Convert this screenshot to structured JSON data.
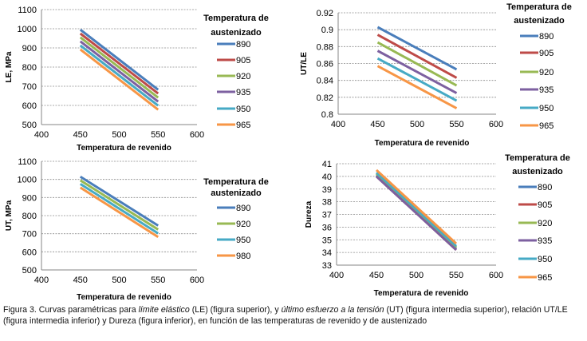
{
  "colors": {
    "890": "#4a7ebb",
    "905": "#be4b48",
    "920": "#98b954",
    "935": "#7d60a0",
    "950": "#46aac5",
    "965": "#f79646",
    "980": "#f79646"
  },
  "chart_data": [
    {
      "type": "line",
      "title": "",
      "xlabel": "Temperatura de revenido",
      "ylabel": "LE, MPa",
      "xlim": [
        400,
        600
      ],
      "xticks": [
        400,
        450,
        500,
        550,
        600
      ],
      "ylim": [
        500,
        1100
      ],
      "yticks": [
        500,
        600,
        700,
        800,
        900,
        1000,
        1100
      ],
      "ytick_labels": [
        "500",
        "600",
        "700",
        "800",
        "900",
        "1000",
        "1100"
      ],
      "grid": true,
      "legend_title": "Temperatura de austenizado",
      "legend_title_lines": [
        "Temperatura de",
        "austenizado"
      ],
      "legend": "right",
      "x": [
        450,
        550
      ],
      "series": [
        {
          "name": "890",
          "values": [
            995,
            682
          ]
        },
        {
          "name": "905",
          "values": [
            975,
            662
          ]
        },
        {
          "name": "920",
          "values": [
            955,
            641
          ]
        },
        {
          "name": "935",
          "values": [
            934,
            620
          ]
        },
        {
          "name": "950",
          "values": [
            913,
            599
          ]
        },
        {
          "name": "965",
          "values": [
            892,
            578
          ]
        }
      ]
    },
    {
      "type": "line",
      "title": "",
      "xlabel": "Temperatura de revenido",
      "ylabel": "UT/LE",
      "xlim": [
        400,
        600
      ],
      "xticks": [
        400,
        450,
        500,
        550,
        600
      ],
      "ylim": [
        0.8,
        0.92
      ],
      "yticks": [
        0.8,
        0.82,
        0.84,
        0.86,
        0.88,
        0.9,
        0.92
      ],
      "ytick_labels": [
        "0.8",
        "0.82",
        "0.84",
        "0.86",
        "0.88",
        "0.9",
        "0.92"
      ],
      "grid": true,
      "legend_title": "Temperatura de austenizado",
      "legend_title_lines": [
        "Temperatura de",
        "austenizado"
      ],
      "legend": "right",
      "x": [
        450,
        550
      ],
      "series": [
        {
          "name": "890",
          "values": [
            0.903,
            0.853
          ]
        },
        {
          "name": "905",
          "values": [
            0.894,
            0.843
          ]
        },
        {
          "name": "920",
          "values": [
            0.885,
            0.834
          ]
        },
        {
          "name": "935",
          "values": [
            0.875,
            0.825
          ]
        },
        {
          "name": "950",
          "values": [
            0.866,
            0.816
          ]
        },
        {
          "name": "965",
          "values": [
            0.857,
            0.807
          ]
        }
      ]
    },
    {
      "type": "line",
      "title": "",
      "xlabel": "Temperatura de revenido",
      "ylabel": "UT, MPa",
      "xlim": [
        400,
        600
      ],
      "xticks": [
        400,
        450,
        500,
        550,
        600
      ],
      "ylim": [
        500,
        1100
      ],
      "yticks": [
        500,
        600,
        700,
        800,
        900,
        1000,
        1100
      ],
      "ytick_labels": [
        "500",
        "600",
        "700",
        "800",
        "900",
        "1000",
        "1100"
      ],
      "grid": true,
      "legend_title": "Temperatura de austenizado",
      "legend_title_lines": [
        "Temperatura de",
        "austenizado"
      ],
      "legend": "right",
      "x": [
        450,
        550
      ],
      "series": [
        {
          "name": "890",
          "values": [
            1015,
            745
          ]
        },
        {
          "name": "920",
          "values": [
            995,
            723
          ]
        },
        {
          "name": "950",
          "values": [
            975,
            702
          ]
        },
        {
          "name": "980",
          "values": [
            955,
            682
          ]
        }
      ]
    },
    {
      "type": "line",
      "title": "",
      "xlabel": "Temperatura de revenido",
      "ylabel": "Dureza",
      "xlim": [
        400,
        600
      ],
      "xticks": [
        400,
        450,
        500,
        550,
        600
      ],
      "ylim": [
        33,
        41
      ],
      "yticks": [
        33,
        34,
        35,
        36,
        37,
        38,
        39,
        40,
        41
      ],
      "ytick_labels": [
        "33",
        "34",
        "35",
        "36",
        "37",
        "38",
        "39",
        "40",
        "41"
      ],
      "grid": true,
      "legend_title": "Temperatura de austenizado",
      "legend_title_lines": [
        "Temperatura de",
        "austenizado"
      ],
      "legend": "right",
      "x": [
        450,
        550
      ],
      "series": [
        {
          "name": "890",
          "values": [
            40.1,
            34.3
          ]
        },
        {
          "name": "905",
          "values": [
            40.0,
            34.2
          ]
        },
        {
          "name": "920",
          "values": [
            40.2,
            34.4
          ]
        },
        {
          "name": "935",
          "values": [
            40.0,
            34.2
          ]
        },
        {
          "name": "950",
          "values": [
            40.3,
            34.5
          ]
        },
        {
          "name": "965",
          "values": [
            40.5,
            34.7
          ]
        }
      ]
    }
  ],
  "caption": {
    "p1": "Figura 3. Curvas paramétricas para ",
    "i1": "límite elástico",
    "p2": " (LE) (figura superior), y ",
    "i2": "último esfuerzo a la tensión",
    "p3": " (UT) (figura intermedia superior), relación UT/LE (figura intermedia inferior) y Dureza (figura inferior), en función de las temperaturas de revenido y de austenizado"
  }
}
